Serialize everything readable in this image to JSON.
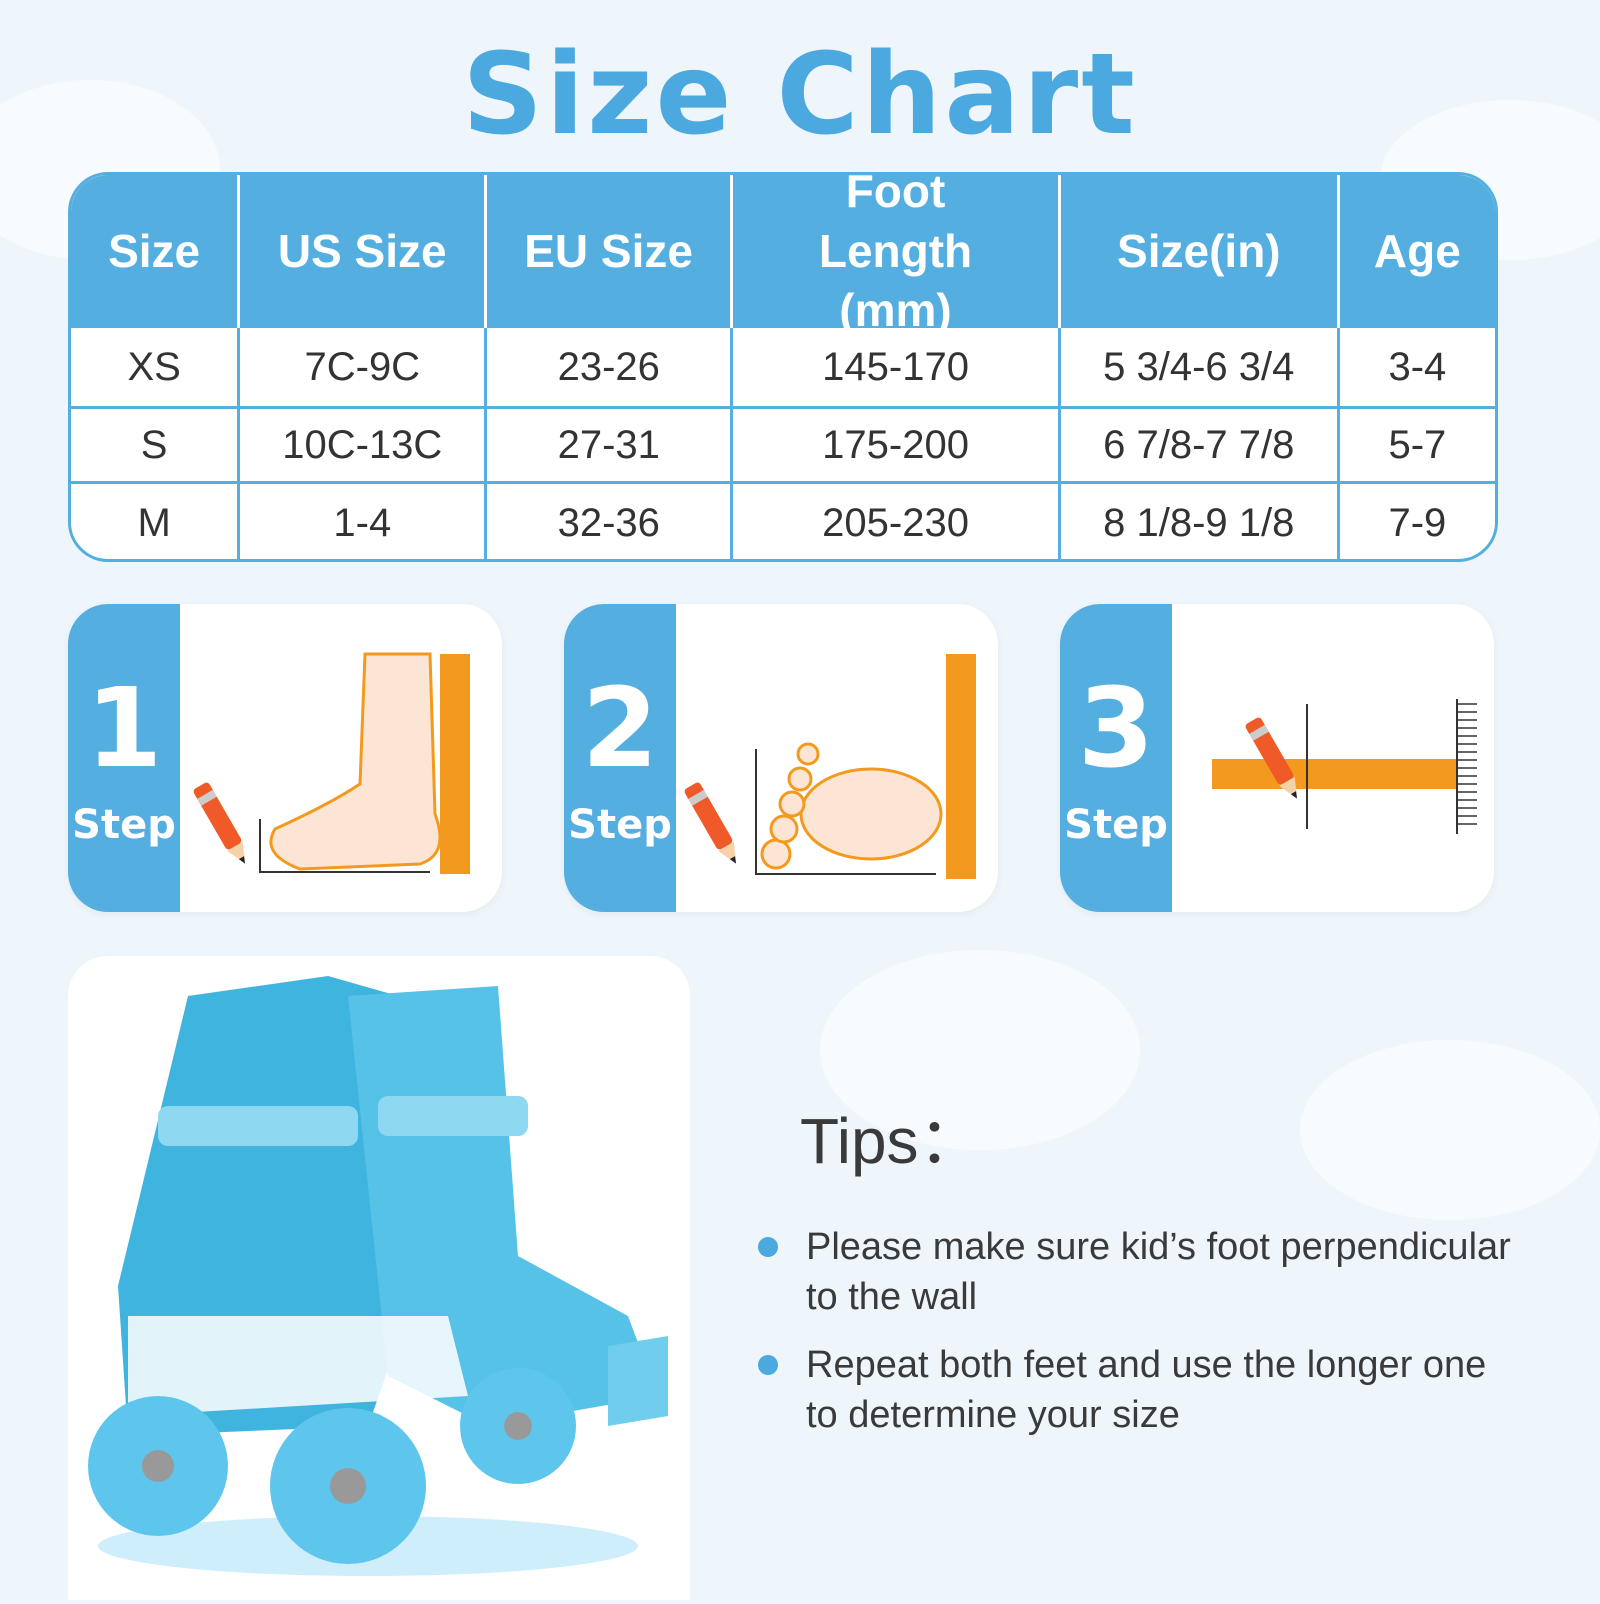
{
  "title": "Size Chart",
  "table": {
    "headers": [
      "Size",
      "US Size",
      "EU Size",
      "Foot Length (mm)",
      "Size(in)",
      "Age"
    ],
    "rows": [
      [
        "XS",
        "7C-9C",
        "23-26",
        "145-170",
        "5 3/4-6 3/4",
        "3-4"
      ],
      [
        "S",
        "10C-13C",
        "27-31",
        "175-200",
        "6 7/8-7 7/8",
        "5-7"
      ],
      [
        "M",
        "1-4",
        "32-36",
        "205-230",
        "8 1/8-9 1/8",
        "7-9"
      ]
    ]
  },
  "steps": [
    {
      "number": "1",
      "label": "Step"
    },
    {
      "number": "2",
      "label": "Step"
    },
    {
      "number": "3",
      "label": "Step"
    }
  ],
  "tips": {
    "heading": "Tips：",
    "items": [
      "Please make sure kid’s foot perpendicular to the wall",
      "Repeat both feet and use the longer one to determine your size"
    ]
  },
  "colors": {
    "accent": "#55aee0",
    "ruler": "#f39a1e",
    "pencil": "#f05a28"
  }
}
